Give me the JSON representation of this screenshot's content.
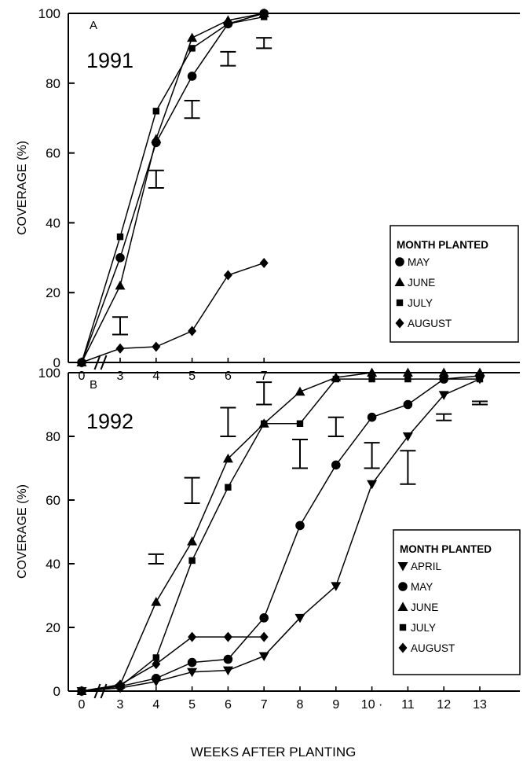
{
  "xlabel": "WEEKS AFTER PLANTING",
  "chart_data": [
    {
      "type": "line",
      "panel_letter": "A",
      "year": "1991",
      "ylabel": "COVERAGE (%)",
      "xlabel": "WEEKS AFTER PLANTING",
      "ylim": [
        0,
        100
      ],
      "yticks": [
        0,
        20,
        40,
        60,
        80,
        100
      ],
      "xticks": [
        0,
        3,
        4,
        5,
        6,
        7
      ],
      "x_axis_break": "between 0 and 3",
      "legend": {
        "title": "MONTH PLANTED",
        "position": "right"
      },
      "series": [
        {
          "name": "MAY",
          "marker": "circle",
          "x": [
            0,
            3,
            4,
            5,
            6,
            7
          ],
          "y": [
            0,
            30,
            63,
            82,
            97,
            100
          ]
        },
        {
          "name": "JUNE",
          "marker": "triangle",
          "x": [
            0,
            3,
            4,
            5,
            6,
            7
          ],
          "y": [
            0,
            22,
            64,
            93,
            98,
            100
          ]
        },
        {
          "name": "JULY",
          "marker": "square",
          "x": [
            0,
            3,
            4,
            5,
            6,
            7
          ],
          "y": [
            0,
            36,
            72,
            90,
            97,
            99
          ]
        },
        {
          "name": "AUGUST",
          "marker": "diamond",
          "x": [
            0,
            3,
            4,
            5,
            6,
            7
          ],
          "y": [
            0,
            4,
            4.5,
            9,
            25,
            28.5
          ]
        }
      ],
      "error_bars": [
        {
          "x": 3,
          "low": 8,
          "high": 13
        },
        {
          "x": 4,
          "low": 50,
          "high": 55
        },
        {
          "x": 5,
          "low": 70,
          "high": 75
        },
        {
          "x": 6,
          "low": 85,
          "high": 89
        },
        {
          "x": 7,
          "low": 90,
          "high": 93
        }
      ]
    },
    {
      "type": "line",
      "panel_letter": "B",
      "year": "1992",
      "ylabel": "COVERAGE (%)",
      "xlabel": "WEEKS AFTER PLANTING",
      "ylim": [
        0,
        100
      ],
      "yticks": [
        0,
        20,
        40,
        60,
        80,
        100
      ],
      "xticks": [
        0,
        3,
        4,
        5,
        6,
        7,
        8,
        9,
        10,
        11,
        12,
        13
      ],
      "xtick_labels": [
        "0",
        "3",
        "4",
        "5",
        "6",
        "7",
        "8",
        "9",
        "10 ·",
        "11",
        "12",
        "13"
      ],
      "x_axis_break": "between 0 and 3",
      "legend": {
        "title": "MONTH PLANTED",
        "position": "right"
      },
      "series": [
        {
          "name": "APRIL",
          "marker": "triangle-down",
          "x": [
            0,
            3,
            4,
            5,
            6,
            7,
            8,
            9,
            10,
            11,
            12,
            13
          ],
          "y": [
            0,
            1,
            3,
            6,
            6.5,
            11,
            23,
            33,
            65,
            80,
            93,
            98
          ]
        },
        {
          "name": "MAY",
          "marker": "circle",
          "x": [
            0,
            3,
            4,
            5,
            6,
            7,
            8,
            9,
            10,
            11,
            12,
            13
          ],
          "y": [
            0,
            1.5,
            4,
            9,
            10,
            23,
            52,
            71,
            86,
            90,
            98,
            99
          ]
        },
        {
          "name": "JUNE",
          "marker": "triangle",
          "x": [
            0,
            3,
            4,
            5,
            6,
            7,
            8,
            9,
            10,
            11,
            12,
            13
          ],
          "y": [
            0,
            2,
            28,
            47,
            73,
            84,
            94,
            98.5,
            100,
            100,
            100,
            100
          ]
        },
        {
          "name": "JULY",
          "marker": "square",
          "x": [
            0,
            3,
            4,
            5,
            6,
            7,
            8,
            9,
            10,
            11,
            12,
            13
          ],
          "y": [
            0,
            1.5,
            10.5,
            41,
            64,
            84,
            84,
            98,
            98,
            98,
            98,
            98
          ]
        },
        {
          "name": "AUGUST",
          "marker": "diamond",
          "x": [
            0,
            3,
            4,
            5,
            6,
            7
          ],
          "y": [
            0,
            2,
            8.5,
            17,
            17,
            17
          ]
        }
      ],
      "error_bars": [
        {
          "x": 4,
          "low": 40,
          "high": 43
        },
        {
          "x": 5,
          "low": 59,
          "high": 67
        },
        {
          "x": 6,
          "low": 80,
          "high": 89
        },
        {
          "x": 7,
          "low": 90,
          "high": 97
        },
        {
          "x": 8,
          "low": 70,
          "high": 79
        },
        {
          "x": 9,
          "low": 80,
          "high": 86
        },
        {
          "x": 10,
          "low": 70,
          "high": 78
        },
        {
          "x": 11,
          "low": 65,
          "high": 75.5
        },
        {
          "x": 12,
          "low": 85,
          "high": 87
        },
        {
          "x": 13,
          "low": 90,
          "high": 91
        }
      ]
    }
  ]
}
